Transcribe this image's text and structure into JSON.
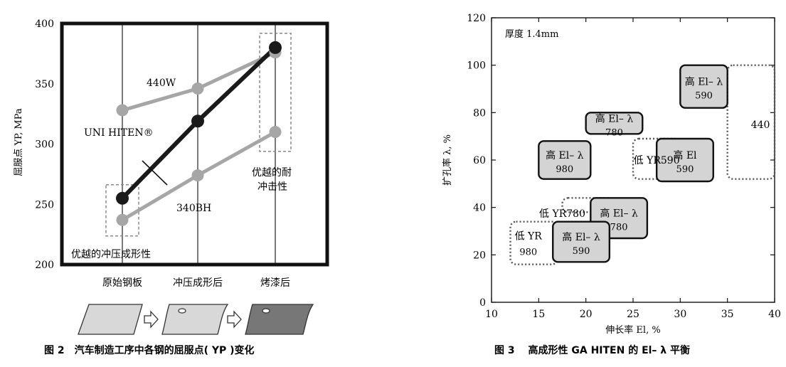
{
  "colors": {
    "gray_line": "#a6a6a6",
    "black_line": "#1a1a1a",
    "box_fill": "#d4d4d4",
    "dotted": "#555555"
  },
  "chart_data": [
    {
      "type": "line",
      "caption": "图 2　汽车制造工序中各钢的屈服点( YP )变化",
      "ylabel": "屈服点 YP, MPa",
      "ylim": [
        200,
        400
      ],
      "yticks": [
        "400",
        "350",
        "300",
        "250",
        "200"
      ],
      "categories": [
        "原始钢板",
        "冲压成形后",
        "烤漆后"
      ],
      "series": [
        {
          "name": "440W",
          "values": [
            328,
            346,
            376
          ],
          "color": "#a6a6a6"
        },
        {
          "name": "UNI HITEN®",
          "values": [
            255,
            319,
            380
          ],
          "color": "#1a1a1a"
        },
        {
          "name": "340BH",
          "values": [
            237,
            274,
            310
          ],
          "color": "#a6a6a6"
        }
      ],
      "annotations": {
        "left_box": "优越的冲压成形性",
        "right_box_line1": "优越的耐",
        "right_box_line2": "冲击性"
      },
      "process_icons": [
        "flat-sheet",
        "formed-sheet",
        "painted-sheet"
      ]
    },
    {
      "type": "scatter",
      "caption": "图 3　 高成形性 GA HITEN 的 El– λ 平衡",
      "xlabel": "伸长率 El, %",
      "ylabel": "扩孔率 λ, %",
      "xlim": [
        10,
        40
      ],
      "ylim": [
        0,
        120
      ],
      "xticks": [
        "10",
        "15",
        "20",
        "25",
        "30",
        "35",
        "40"
      ],
      "yticks": [
        "0",
        "20",
        "40",
        "60",
        "80",
        "100",
        "120"
      ],
      "note": "厚度 1.4mm",
      "grid": true,
      "regions": [
        {
          "kind": "solid",
          "line1": "高 El– λ",
          "line2": "590",
          "x": [
            30,
            35
          ],
          "y": [
            82,
            100
          ]
        },
        {
          "kind": "solid",
          "line1": "高 El– λ",
          "line2": "780",
          "x": [
            20,
            26
          ],
          "y": [
            71,
            80
          ]
        },
        {
          "kind": "solid",
          "line1": "高 El– λ",
          "line2": "980",
          "x": [
            15,
            20.5
          ],
          "y": [
            52,
            68
          ]
        },
        {
          "kind": "solid",
          "line1": "高 El",
          "line2": "590",
          "x": [
            27.5,
            33.5
          ],
          "y": [
            51,
            69
          ]
        },
        {
          "kind": "solid",
          "line1": "高 El– λ",
          "line2": "780",
          "x": [
            20.5,
            26.5
          ],
          "y": [
            27,
            44
          ]
        },
        {
          "kind": "solid",
          "line1": "高 El– λ",
          "line2": "590",
          "x": [
            16.5,
            22.5
          ],
          "y": [
            17,
            34
          ]
        },
        {
          "kind": "dotted",
          "label": "440",
          "x": [
            35,
            40
          ],
          "y": [
            52,
            100
          ]
        },
        {
          "kind": "dotted",
          "label": "低 YR590",
          "x": [
            25,
            30
          ],
          "y": [
            52,
            69
          ]
        },
        {
          "kind": "dotted",
          "label": "低 YR780",
          "x": [
            17.5,
            23
          ],
          "y": [
            38,
            44
          ]
        },
        {
          "kind": "dotted",
          "label1": "低 YR",
          "label2": "980",
          "x": [
            12,
            17
          ],
          "y": [
            16,
            34
          ]
        }
      ]
    }
  ]
}
